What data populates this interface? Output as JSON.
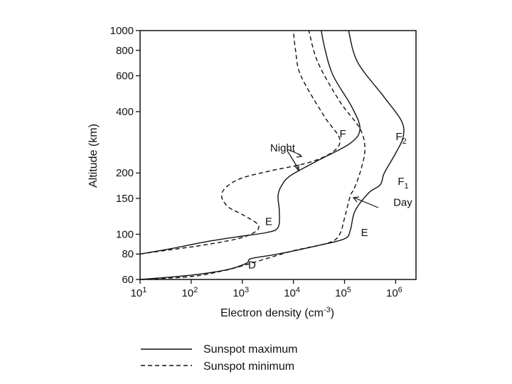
{
  "chart_data": {
    "type": "line",
    "xlabel": "Electron density (cm",
    "xlabel_exp": "-3",
    "xlabel_end": ")",
    "ylabel": "Altitude (km)",
    "x_scale": "log",
    "y_scale": "log",
    "xlim": [
      10,
      2500000
    ],
    "ylim": [
      60,
      1000
    ],
    "x_ticks": [
      {
        "value": 10,
        "base": "10",
        "exp": "1"
      },
      {
        "value": 100,
        "base": "10",
        "exp": "2"
      },
      {
        "value": 1000,
        "base": "10",
        "exp": "3"
      },
      {
        "value": 10000,
        "base": "10",
        "exp": "4"
      },
      {
        "value": 100000,
        "base": "10",
        "exp": "5"
      },
      {
        "value": 1000000,
        "base": "10",
        "exp": "6"
      }
    ],
    "y_ticks": [
      {
        "value": 60,
        "label": "60"
      },
      {
        "value": 80,
        "label": "80"
      },
      {
        "value": 100,
        "label": "100"
      },
      {
        "value": 150,
        "label": "150"
      },
      {
        "value": 200,
        "label": "200"
      },
      {
        "value": 400,
        "label": "400"
      },
      {
        "value": 600,
        "label": "600"
      },
      {
        "value": 800,
        "label": "800"
      },
      {
        "value": 1000,
        "label": "1000"
      }
    ],
    "series": [
      {
        "name": "Sunspot maximum",
        "style": "solid",
        "points": [
          [
            10,
            80
          ],
          [
            40,
            85
          ],
          [
            200,
            92
          ],
          [
            1000,
            98
          ],
          [
            3000,
            102
          ],
          [
            5000,
            108
          ],
          [
            5300,
            130
          ],
          [
            5000,
            155
          ],
          [
            6000,
            175
          ],
          [
            9000,
            195
          ],
          [
            30000,
            230
          ],
          [
            130000,
            280
          ],
          [
            200000,
            330
          ],
          [
            140000,
            420
          ],
          [
            60000,
            600
          ],
          [
            42000,
            800
          ],
          [
            35000,
            1000
          ]
        ]
      },
      {
        "name": "Sunspot minimum",
        "style": "dashed",
        "points": [
          [
            10,
            80
          ],
          [
            40,
            84
          ],
          [
            150,
            88
          ],
          [
            800,
            95
          ],
          [
            1800,
            103
          ],
          [
            2000,
            112
          ],
          [
            1000,
            125
          ],
          [
            500,
            138
          ],
          [
            400,
            160
          ],
          [
            800,
            185
          ],
          [
            3000,
            203
          ],
          [
            20000,
            225
          ],
          [
            60000,
            255
          ],
          [
            80000,
            295
          ],
          [
            40000,
            380
          ],
          [
            14000,
            600
          ],
          [
            11000,
            800
          ],
          [
            10000,
            1000
          ]
        ]
      },
      {
        "name": "Sunspot maximum",
        "style": "solid",
        "points": [
          [
            10,
            60
          ],
          [
            100,
            63
          ],
          [
            500,
            67
          ],
          [
            1200,
            72
          ],
          [
            1500,
            76
          ],
          [
            5000,
            80
          ],
          [
            30000,
            88
          ],
          [
            100000,
            95
          ],
          [
            130000,
            105
          ],
          [
            160000,
            130
          ],
          [
            300000,
            160
          ],
          [
            500000,
            175
          ],
          [
            600000,
            200
          ],
          [
            1000000,
            250
          ],
          [
            1400000,
            300
          ],
          [
            1300000,
            360
          ],
          [
            600000,
            470
          ],
          [
            180000,
            700
          ],
          [
            120000,
            1000
          ]
        ]
      },
      {
        "name": "Sunspot minimum",
        "style": "dashed",
        "points": [
          [
            10,
            60
          ],
          [
            100,
            62
          ],
          [
            400,
            66
          ],
          [
            1000,
            70
          ],
          [
            3000,
            76
          ],
          [
            10000,
            83
          ],
          [
            50000,
            91
          ],
          [
            80000,
            100
          ],
          [
            100000,
            120
          ],
          [
            130000,
            155
          ],
          [
            150000,
            165
          ],
          [
            200000,
            200
          ],
          [
            250000,
            260
          ],
          [
            200000,
            330
          ],
          [
            80000,
            450
          ],
          [
            30000,
            700
          ],
          [
            20000,
            1000
          ]
        ]
      }
    ],
    "annotations": [
      {
        "text": "Night",
        "x": 3500,
        "y": 255
      },
      {
        "text": "F",
        "x": 80000,
        "y": 300
      },
      {
        "text": "F",
        "sub": "2",
        "x": 1000000,
        "y": 290
      },
      {
        "text": "F",
        "sub": "1",
        "x": 1100000,
        "y": 175
      },
      {
        "text": "Day",
        "x": 900000,
        "y": 138
      },
      {
        "text": "E",
        "x": 2800,
        "y": 111
      },
      {
        "text": "E",
        "x": 210000,
        "y": 98
      },
      {
        "text": "D",
        "x": 1300,
        "y": 68
      }
    ]
  },
  "legend": {
    "items": [
      {
        "label": "Sunspot maximum",
        "style": "solid"
      },
      {
        "label": "Sunspot minimum",
        "style": "dashed"
      }
    ]
  }
}
